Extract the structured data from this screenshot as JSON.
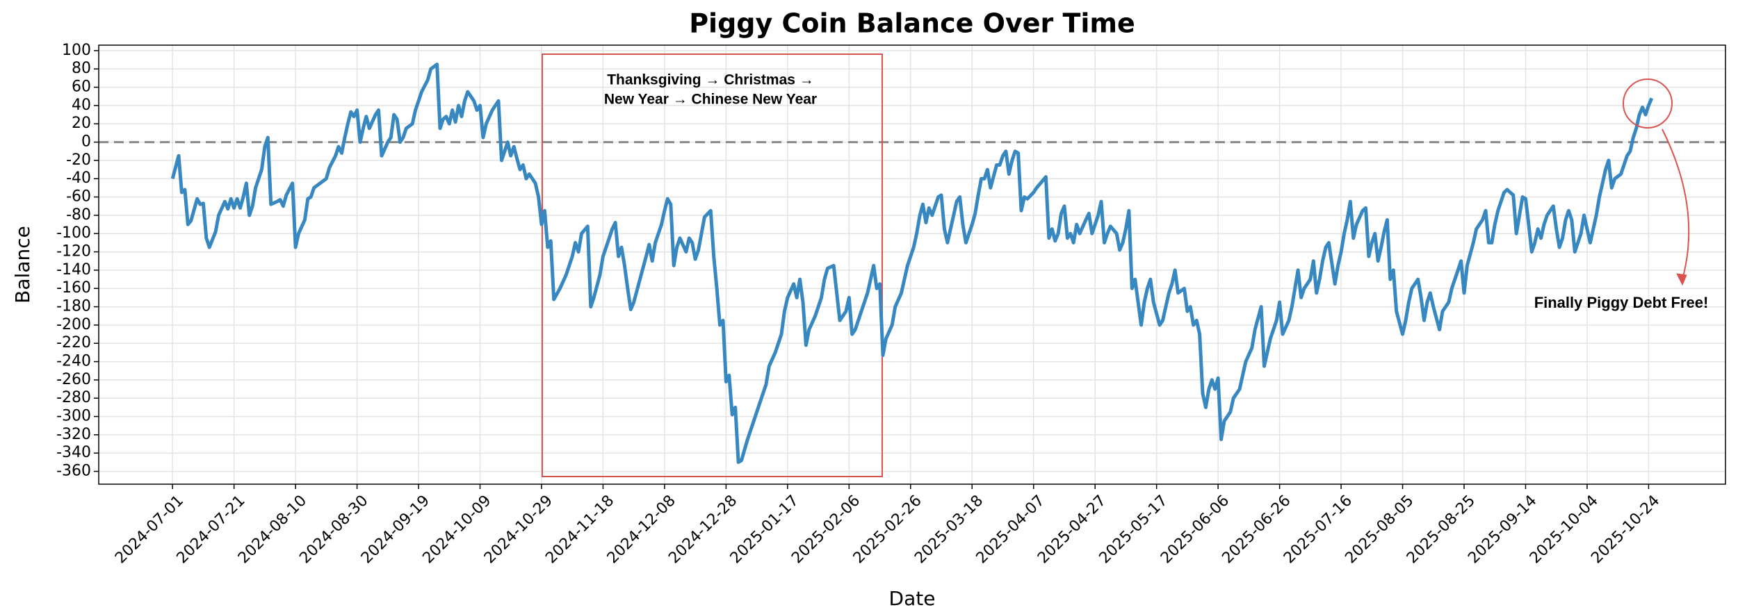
{
  "chart_data": {
    "type": "line",
    "title": "Piggy Coin Balance Over Time",
    "xlabel": "Date",
    "ylabel": "Balance",
    "color": "#3787c0",
    "grid": true,
    "hline": 0,
    "box_text": [
      "Thanksgiving → Christmas →",
      "New Year → Chinese New Year"
    ],
    "callout": "Finally Piggy Debt Free!",
    "xlim": [
      "2024-06-07",
      "2025-11-18"
    ],
    "xticks": [
      "2024-07-01",
      "2024-07-21",
      "2024-08-10",
      "2024-08-30",
      "2024-09-19",
      "2024-10-09",
      "2024-10-29",
      "2024-11-18",
      "2024-12-08",
      "2024-12-28",
      "2025-01-17",
      "2025-02-06",
      "2025-02-26",
      "2025-03-18",
      "2025-04-07",
      "2025-04-27",
      "2025-05-17",
      "2025-06-06",
      "2025-06-26",
      "2025-07-16",
      "2025-08-05",
      "2025-08-25",
      "2025-09-14",
      "2025-10-04",
      "2025-10-24"
    ],
    "ylim": [
      -374,
      106
    ],
    "yticks": [
      -360,
      -340,
      -320,
      -300,
      -280,
      -260,
      -240,
      -220,
      -200,
      -180,
      -160,
      -140,
      -120,
      -100,
      -80,
      -60,
      -40,
      -20,
      0,
      20,
      40,
      60,
      80,
      100
    ],
    "x": [
      "2024-07-01",
      "2024-07-03",
      "2024-07-04",
      "2024-07-05",
      "2024-07-06",
      "2024-07-07",
      "2024-07-09",
      "2024-07-10",
      "2024-07-11",
      "2024-07-12",
      "2024-07-13",
      "2024-07-15",
      "2024-07-16",
      "2024-07-18",
      "2024-07-19",
      "2024-07-20",
      "2024-07-21",
      "2024-07-22",
      "2024-07-23",
      "2024-07-24",
      "2024-07-25",
      "2024-07-26",
      "2024-07-27",
      "2024-07-28",
      "2024-07-30",
      "2024-07-31",
      "2024-08-01",
      "2024-08-02",
      "2024-08-04",
      "2024-08-05",
      "2024-08-06",
      "2024-08-07",
      "2024-08-09",
      "2024-08-10",
      "2024-08-11",
      "2024-08-13",
      "2024-08-14",
      "2024-08-15",
      "2024-08-16",
      "2024-08-18",
      "2024-08-20",
      "2024-08-21",
      "2024-08-23",
      "2024-08-24",
      "2024-08-25",
      "2024-08-26",
      "2024-08-27",
      "2024-08-28",
      "2024-08-29",
      "2024-08-30",
      "2024-08-31",
      "2024-09-01",
      "2024-09-02",
      "2024-09-03",
      "2024-09-05",
      "2024-09-06",
      "2024-09-07",
      "2024-09-09",
      "2024-09-10",
      "2024-09-11",
      "2024-09-12",
      "2024-09-13",
      "2024-09-14",
      "2024-09-15",
      "2024-09-17",
      "2024-09-18",
      "2024-09-20",
      "2024-09-22",
      "2024-09-23",
      "2024-09-25",
      "2024-09-26",
      "2024-09-27",
      "2024-09-28",
      "2024-09-29",
      "2024-09-30",
      "2024-10-01",
      "2024-10-02",
      "2024-10-03",
      "2024-10-04",
      "2024-10-05",
      "2024-10-07",
      "2024-10-08",
      "2024-10-09",
      "2024-10-10",
      "2024-10-11",
      "2024-10-13",
      "2024-10-15",
      "2024-10-16",
      "2024-10-17",
      "2024-10-18",
      "2024-10-19",
      "2024-10-20",
      "2024-10-21",
      "2024-10-22",
      "2024-10-23",
      "2024-10-24",
      "2024-10-25",
      "2024-10-27",
      "2024-10-28",
      "2024-10-29",
      "2024-10-30",
      "2024-10-31",
      "2024-11-01",
      "2024-11-02",
      "2024-11-04",
      "2024-11-06",
      "2024-11-08",
      "2024-11-09",
      "2024-11-10",
      "2024-11-11",
      "2024-11-13",
      "2024-11-14",
      "2024-11-15",
      "2024-11-17",
      "2024-11-18",
      "2024-11-20",
      "2024-11-21",
      "2024-11-22",
      "2024-11-23",
      "2024-11-24",
      "2024-11-25",
      "2024-11-26",
      "2024-11-27",
      "2024-11-28",
      "2024-11-30",
      "2024-12-02",
      "2024-12-03",
      "2024-12-04",
      "2024-12-05",
      "2024-12-07",
      "2024-12-08",
      "2024-12-09",
      "2024-12-10",
      "2024-12-11",
      "2024-12-12",
      "2024-12-13",
      "2024-12-15",
      "2024-12-16",
      "2024-12-17",
      "2024-12-18",
      "2024-12-19",
      "2024-12-20",
      "2024-12-21",
      "2024-12-23",
      "2024-12-24",
      "2024-12-25",
      "2024-12-26",
      "2024-12-27",
      "2024-12-28",
      "2024-12-29",
      "2024-12-30",
      "2024-12-31",
      "2025-01-01",
      "2025-01-02",
      "2025-01-04",
      "2025-01-06",
      "2025-01-08",
      "2025-01-10",
      "2025-01-11",
      "2025-01-13",
      "2025-01-15",
      "2025-01-16",
      "2025-01-17",
      "2025-01-19",
      "2025-01-20",
      "2025-01-21",
      "2025-01-22",
      "2025-01-23",
      "2025-01-24",
      "2025-01-26",
      "2025-01-28",
      "2025-01-29",
      "2025-01-30",
      "2025-02-01",
      "2025-02-02",
      "2025-02-03",
      "2025-02-05",
      "2025-02-06",
      "2025-02-07",
      "2025-02-08",
      "2025-02-10",
      "2025-02-12",
      "2025-02-13",
      "2025-02-14",
      "2025-02-15",
      "2025-02-16",
      "2025-02-17",
      "2025-02-18",
      "2025-02-20",
      "2025-02-21",
      "2025-02-23",
      "2025-02-24",
      "2025-02-25",
      "2025-02-27",
      "2025-02-28",
      "2025-03-01",
      "2025-03-02",
      "2025-03-03",
      "2025-03-04",
      "2025-03-05",
      "2025-03-06",
      "2025-03-07",
      "2025-03-08",
      "2025-03-09",
      "2025-03-10",
      "2025-03-11",
      "2025-03-12",
      "2025-03-13",
      "2025-03-14",
      "2025-03-15",
      "2025-03-16",
      "2025-03-18",
      "2025-03-19",
      "2025-03-20",
      "2025-03-21",
      "2025-03-22",
      "2025-03-23",
      "2025-03-24",
      "2025-03-26",
      "2025-03-27",
      "2025-03-28",
      "2025-03-29",
      "2025-03-30",
      "2025-03-31",
      "2025-04-01",
      "2025-04-02",
      "2025-04-03",
      "2025-04-04",
      "2025-04-05",
      "2025-04-07",
      "2025-04-08",
      "2025-04-10",
      "2025-04-11",
      "2025-04-12",
      "2025-04-13",
      "2025-04-14",
      "2025-04-15",
      "2025-04-16",
      "2025-04-17",
      "2025-04-18",
      "2025-04-19",
      "2025-04-20",
      "2025-04-21",
      "2025-04-22",
      "2025-04-24",
      "2025-04-25",
      "2025-04-26",
      "2025-04-27",
      "2025-04-28",
      "2025-04-29",
      "2025-04-30",
      "2025-05-01",
      "2025-05-02",
      "2025-05-04",
      "2025-05-05",
      "2025-05-06",
      "2025-05-07",
      "2025-05-08",
      "2025-05-09",
      "2025-05-10",
      "2025-05-11",
      "2025-05-12",
      "2025-05-13",
      "2025-05-14",
      "2025-05-15",
      "2025-05-16",
      "2025-05-18",
      "2025-05-19",
      "2025-05-20",
      "2025-05-21",
      "2025-05-22",
      "2025-05-23",
      "2025-05-24",
      "2025-05-26",
      "2025-05-27",
      "2025-05-28",
      "2025-05-29",
      "2025-05-30",
      "2025-05-31",
      "2025-06-01",
      "2025-06-02",
      "2025-06-03",
      "2025-06-04",
      "2025-06-05",
      "2025-06-06",
      "2025-06-07",
      "2025-06-08",
      "2025-06-10",
      "2025-06-11",
      "2025-06-13",
      "2025-06-14",
      "2025-06-15",
      "2025-06-17",
      "2025-06-18",
      "2025-06-20",
      "2025-06-21",
      "2025-06-22",
      "2025-06-23",
      "2025-06-25",
      "2025-06-26",
      "2025-06-27",
      "2025-06-29",
      "2025-06-30",
      "2025-07-02",
      "2025-07-03",
      "2025-07-04",
      "2025-07-05",
      "2025-07-06",
      "2025-07-07",
      "2025-07-08",
      "2025-07-09",
      "2025-07-10",
      "2025-07-11",
      "2025-07-12",
      "2025-07-14",
      "2025-07-15",
      "2025-07-16",
      "2025-07-17",
      "2025-07-18",
      "2025-07-19",
      "2025-07-20",
      "2025-07-21",
      "2025-07-23",
      "2025-07-24",
      "2025-07-25",
      "2025-07-26",
      "2025-07-27",
      "2025-07-28",
      "2025-07-29",
      "2025-07-30",
      "2025-07-31",
      "2025-08-01",
      "2025-08-02",
      "2025-08-03",
      "2025-08-05",
      "2025-08-06",
      "2025-08-07",
      "2025-08-08",
      "2025-08-10",
      "2025-08-11",
      "2025-08-12",
      "2025-08-13",
      "2025-08-14",
      "2025-08-15",
      "2025-08-17",
      "2025-08-18",
      "2025-08-20",
      "2025-08-21",
      "2025-08-23",
      "2025-08-24",
      "2025-08-25",
      "2025-08-26",
      "2025-08-28",
      "2025-08-29",
      "2025-08-31",
      "2025-09-01",
      "2025-09-02",
      "2025-09-03",
      "2025-09-04",
      "2025-09-05",
      "2025-09-06",
      "2025-09-07",
      "2025-09-08",
      "2025-09-10",
      "2025-09-11",
      "2025-09-12",
      "2025-09-13",
      "2025-09-14",
      "2025-09-15",
      "2025-09-16",
      "2025-09-17",
      "2025-09-18",
      "2025-09-19",
      "2025-09-20",
      "2025-09-21",
      "2025-09-23",
      "2025-09-24",
      "2025-09-25",
      "2025-09-26",
      "2025-09-27",
      "2025-09-28",
      "2025-09-29",
      "2025-09-30",
      "2025-10-01",
      "2025-10-02",
      "2025-10-03",
      "2025-10-04",
      "2025-10-05",
      "2025-10-06",
      "2025-10-07",
      "2025-10-08",
      "2025-10-09",
      "2025-10-10",
      "2025-10-11",
      "2025-10-12",
      "2025-10-13",
      "2025-10-15",
      "2025-10-16",
      "2025-10-17",
      "2025-10-18",
      "2025-10-19",
      "2025-10-20",
      "2025-10-21",
      "2025-10-22",
      "2025-10-23",
      "2025-10-24",
      "2025-10-25"
    ],
    "values": [
      -40,
      -15,
      -55,
      -52,
      -90,
      -86,
      -62,
      -68,
      -67,
      -105,
      -115,
      -98,
      -80,
      -65,
      -73,
      -62,
      -72,
      -62,
      -72,
      -60,
      -45,
      -80,
      -70,
      -50,
      -30,
      -5,
      5,
      -68,
      -65,
      -63,
      -70,
      -58,
      -45,
      -115,
      -100,
      -85,
      -62,
      -60,
      -50,
      -45,
      -40,
      -28,
      -15,
      -5,
      -12,
      5,
      20,
      33,
      28,
      35,
      0,
      15,
      28,
      15,
      30,
      35,
      -15,
      0,
      5,
      30,
      25,
      0,
      5,
      15,
      20,
      35,
      55,
      68,
      80,
      85,
      15,
      25,
      28,
      20,
      35,
      22,
      40,
      28,
      45,
      55,
      45,
      35,
      40,
      5,
      20,
      35,
      45,
      -20,
      -10,
      0,
      -15,
      -5,
      -18,
      -30,
      -25,
      -40,
      -35,
      -45,
      -60,
      -90,
      -75,
      -115,
      -108,
      -172,
      -160,
      -145,
      -125,
      -110,
      -120,
      -100,
      -92,
      -180,
      -170,
      -145,
      -125,
      -105,
      -95,
      -88,
      -125,
      -115,
      -135,
      -160,
      -183,
      -175,
      -150,
      -125,
      -112,
      -130,
      -110,
      -90,
      -75,
      -62,
      -68,
      -135,
      -115,
      -105,
      -120,
      -105,
      -110,
      -128,
      -118,
      -100,
      -82,
      -75,
      -125,
      -160,
      -200,
      -195,
      -262,
      -255,
      -298,
      -290,
      -350,
      -348,
      -325,
      -305,
      -285,
      -265,
      -245,
      -230,
      -210,
      -185,
      -170,
      -155,
      -170,
      -150,
      -175,
      -222,
      -205,
      -190,
      -170,
      -150,
      -138,
      -135,
      -165,
      -195,
      -185,
      -170,
      -210,
      -205,
      -185,
      -165,
      -150,
      -135,
      -160,
      -155,
      -233,
      -215,
      -200,
      -180,
      -165,
      -150,
      -135,
      -115,
      -100,
      -80,
      -68,
      -88,
      -72,
      -80,
      -70,
      -60,
      -58,
      -95,
      -110,
      -95,
      -80,
      -65,
      -60,
      -90,
      -110,
      -90,
      -78,
      -58,
      -40,
      -40,
      -30,
      -50,
      -25,
      -25,
      -15,
      -10,
      -35,
      -20,
      -10,
      -12,
      -75,
      -60,
      -62,
      -55,
      -50,
      -42,
      -38,
      -105,
      -95,
      -108,
      -100,
      -78,
      -70,
      -105,
      -100,
      -110,
      -90,
      -100,
      -85,
      -78,
      -100,
      -90,
      -80,
      -65,
      -110,
      -100,
      -92,
      -100,
      -118,
      -110,
      -95,
      -75,
      -160,
      -150,
      -175,
      -200,
      -175,
      -160,
      -150,
      -175,
      -200,
      -195,
      -180,
      -165,
      -155,
      -140,
      -165,
      -160,
      -185,
      -180,
      -200,
      -195,
      -210,
      -275,
      -290,
      -270,
      -260,
      -270,
      -258,
      -325,
      -305,
      -295,
      -280,
      -270,
      -255,
      -240,
      -225,
      -205,
      -180,
      -245,
      -230,
      -215,
      -195,
      -175,
      -210,
      -195,
      -180,
      -140,
      -170,
      -160,
      -155,
      -150,
      -130,
      -165,
      -150,
      -130,
      -115,
      -110,
      -155,
      -135,
      -120,
      -100,
      -85,
      -65,
      -105,
      -90,
      -75,
      -72,
      -125,
      -110,
      -100,
      -130,
      -115,
      -98,
      -85,
      -150,
      -140,
      -185,
      -210,
      -195,
      -175,
      -160,
      -150,
      -170,
      -195,
      -175,
      -165,
      -180,
      -205,
      -185,
      -175,
      -160,
      -140,
      -130,
      -165,
      -135,
      -110,
      -95,
      -85,
      -75,
      -110,
      -110,
      -90,
      -75,
      -65,
      -55,
      -52,
      -58,
      -100,
      -80,
      -60,
      -62,
      -90,
      -120,
      -110,
      -95,
      -105,
      -90,
      -80,
      -70,
      -95,
      -115,
      -105,
      -85,
      -75,
      -85,
      -120,
      -110,
      -100,
      -80,
      -95,
      -110,
      -95,
      -80,
      -60,
      -45,
      -30,
      -20,
      -50,
      -40,
      -35,
      -25,
      -15,
      -10,
      5,
      15,
      30,
      38,
      30,
      40,
      48
    ]
  }
}
